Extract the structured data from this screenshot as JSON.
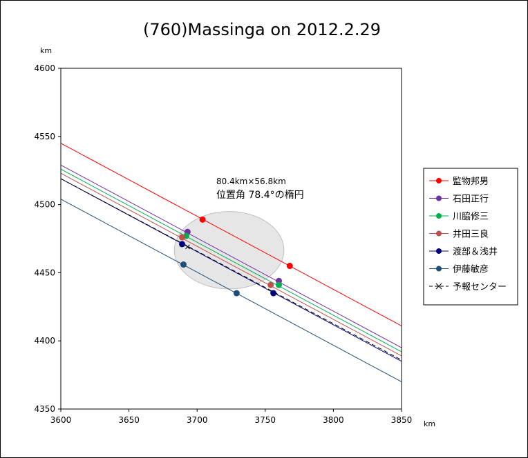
{
  "chart_data": {
    "type": "line",
    "title": "(760)Massinga on 2012.2.29",
    "xlabel": "km",
    "ylabel": "km",
    "xlim": [
      3600,
      3850
    ],
    "ylim": [
      4350,
      4600
    ],
    "x_ticks": [
      3600,
      3650,
      3700,
      3750,
      3800,
      3850
    ],
    "y_ticks": [
      4350,
      4400,
      4450,
      4500,
      4550,
      4600
    ],
    "grid": false,
    "legend_position": "right",
    "annotation": {
      "line1": "80.4km×56.8km",
      "line2": "位置角 78.4°の楕円"
    },
    "ellipse": {
      "cx": 3723.5,
      "cy": 4466.5,
      "semi_major_km": 40.2,
      "semi_minor_km": 28.4,
      "color": "#e6e6e6"
    },
    "series": [
      {
        "name": "監物邦男",
        "color": "#ff0000",
        "line": [
          [
            3600,
            4545
          ],
          [
            3850,
            4411
          ]
        ],
        "points": [
          [
            3704,
            4489
          ],
          [
            3768,
            4455
          ]
        ]
      },
      {
        "name": "石田正行",
        "color": "#7030a0",
        "line": [
          [
            3600,
            4529
          ],
          [
            3850,
            4395
          ]
        ],
        "points": [
          [
            3693,
            4480
          ],
          [
            3760,
            4444
          ]
        ]
      },
      {
        "name": "川脇修三",
        "color": "#00b050",
        "line": [
          [
            3600,
            4526
          ],
          [
            3850,
            4392
          ]
        ],
        "points": [
          [
            3692,
            4477
          ],
          [
            3760,
            4441
          ]
        ]
      },
      {
        "name": "井田三良",
        "color": "#c0504d",
        "line": [
          [
            3600,
            4523
          ],
          [
            3850,
            4389
          ]
        ],
        "points": [
          [
            3689,
            4476
          ],
          [
            3754,
            4441
          ]
        ]
      },
      {
        "name": "渡部＆浅井",
        "color": "#00007f",
        "line": [
          [
            3600,
            4519
          ],
          [
            3850,
            4385
          ]
        ],
        "points": [
          [
            3689,
            4471
          ],
          [
            3756,
            4435
          ]
        ]
      },
      {
        "name": "伊藤敏彦",
        "color": "#1f4e79",
        "line": [
          [
            3600,
            4504
          ],
          [
            3850,
            4370
          ]
        ],
        "points": [
          [
            3690,
            4456
          ],
          [
            3729,
            4435
          ]
        ]
      },
      {
        "name": "予報センター",
        "color": "#000000",
        "dashed": true,
        "line": [
          [
            3600,
            4519
          ],
          [
            3850,
            4386
          ]
        ],
        "points": [
          [
            3693,
            4469
          ]
        ]
      }
    ]
  }
}
